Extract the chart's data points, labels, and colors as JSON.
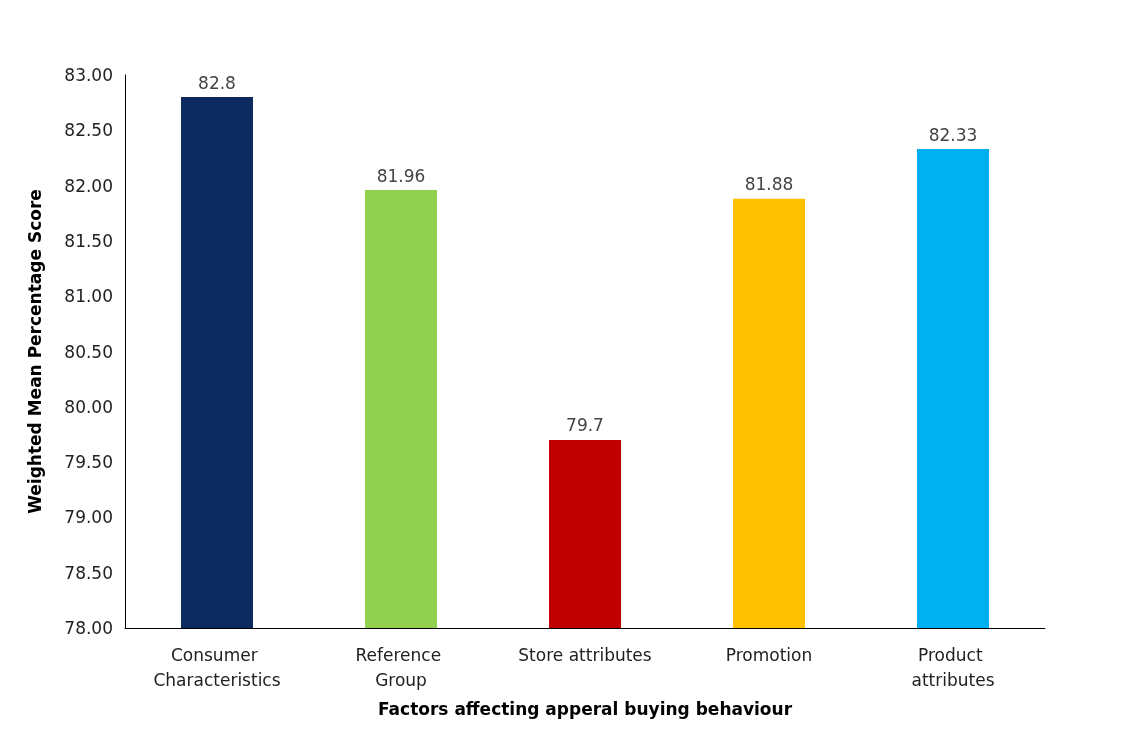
{
  "chart_data": {
    "type": "bar",
    "xlabel": "Factors affecting apperal buying behaviour",
    "ylabel": "Weighted Mean Percentage Score",
    "categories": [
      "Consumer Characteristics",
      "Reference Group",
      "Store attributes",
      "Promotion",
      "Product attributes"
    ],
    "values": [
      82.8,
      81.96,
      79.7,
      81.88,
      82.33
    ],
    "colors": [
      "#0d2a5e",
      "#92d050",
      "#c00000",
      "#ffc000",
      "#00b0f0"
    ],
    "ylim": [
      78,
      83
    ],
    "yticks": [
      {
        "value": 78,
        "label": "78.00"
      },
      {
        "value": 78.5,
        "label": "78.50"
      },
      {
        "value": 79,
        "label": "79.00"
      },
      {
        "value": 79.5,
        "label": "79.50"
      },
      {
        "value": 80,
        "label": "80.00"
      },
      {
        "value": 80.5,
        "label": "80.50"
      },
      {
        "value": 81,
        "label": "81.00"
      },
      {
        "value": 81.5,
        "label": "81.50"
      },
      {
        "value": 82,
        "label": "82.00"
      },
      {
        "value": 82.5,
        "label": "82.50"
      },
      {
        "value": 83,
        "label": "83.00"
      }
    ],
    "data_labels": true
  }
}
